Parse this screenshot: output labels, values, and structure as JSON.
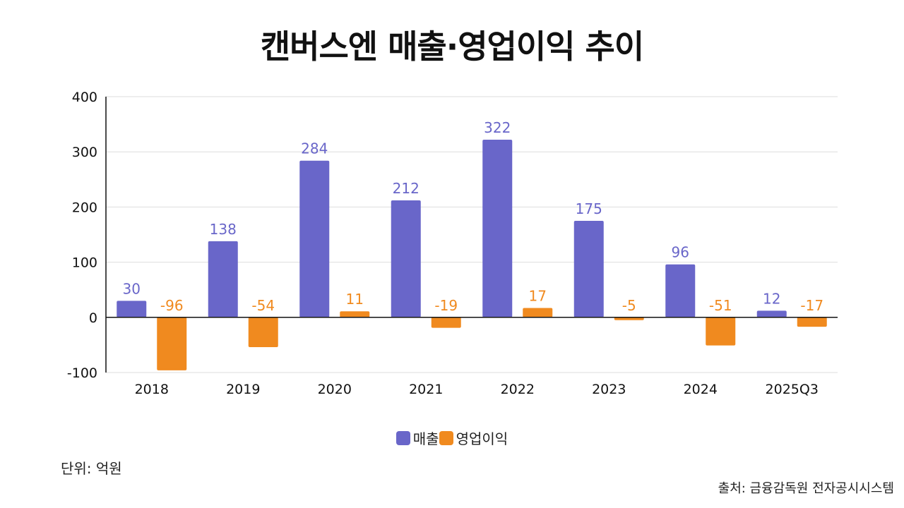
{
  "title": "캔버스엔 매출·영업이익 추이",
  "unit_note": "단위: 억원",
  "source_note": "출처: 금융감독원 전자공시시스템",
  "colors": {
    "sales": "#6966c9",
    "operating_profit": "#f08a1f",
    "grid": "#dddddd",
    "axis": "#111111"
  },
  "chart_data": {
    "type": "bar",
    "categories": [
      "2018",
      "2019",
      "2020",
      "2021",
      "2022",
      "2023",
      "2024",
      "2025Q3"
    ],
    "series": [
      {
        "name": "매출",
        "values": [
          30,
          138,
          284,
          212,
          322,
          175,
          96,
          12
        ]
      },
      {
        "name": "영업이익",
        "values": [
          -96,
          -54,
          11,
          -19,
          17,
          -5,
          -51,
          -17
        ]
      }
    ],
    "ylim": [
      -100,
      400
    ],
    "yticks": [
      400,
      300,
      200,
      100,
      0,
      -100
    ],
    "grid": true,
    "legend": "bottom-center"
  }
}
